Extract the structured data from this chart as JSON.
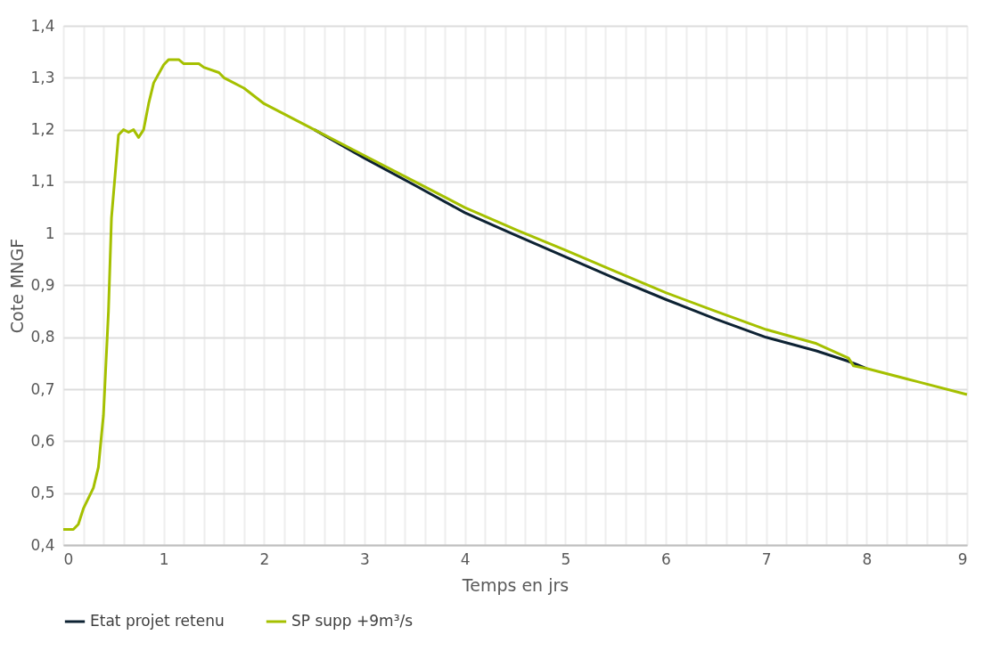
{
  "chart_data": {
    "type": "line",
    "xlabel": "Temps en jrs",
    "ylabel": "Cote MNGF",
    "xlim": [
      0,
      9
    ],
    "ylim": [
      0.4,
      1.4
    ],
    "xticks": [
      0,
      {
        "value": 0.2,
        "label": null
      },
      {
        "value": 0.4,
        "label": null
      },
      {
        "value": 0.6,
        "label": null
      },
      {
        "value": 0.8,
        "label": null
      },
      1,
      {
        "value": 1.2,
        "label": null
      },
      {
        "value": 1.4,
        "label": null
      },
      {
        "value": 1.6,
        "label": null
      },
      {
        "value": 1.8,
        "label": null
      },
      2,
      {
        "value": 2.2,
        "label": null
      },
      {
        "value": 2.4,
        "label": null
      },
      {
        "value": 2.6,
        "label": null
      },
      {
        "value": 2.8,
        "label": null
      },
      3,
      {
        "value": 3.2,
        "label": null
      },
      {
        "value": 3.4,
        "label": null
      },
      {
        "value": 3.6,
        "label": null
      },
      {
        "value": 3.8,
        "label": null
      },
      4,
      {
        "value": 4.2,
        "label": null
      },
      {
        "value": 4.4,
        "label": null
      },
      {
        "value": 4.6,
        "label": null
      },
      {
        "value": 4.8,
        "label": null
      },
      5,
      {
        "value": 5.2,
        "label": null
      },
      {
        "value": 5.4,
        "label": null
      },
      {
        "value": 5.6,
        "label": null
      },
      {
        "value": 5.8,
        "label": null
      },
      6,
      {
        "value": 6.2,
        "label": null
      },
      {
        "value": 6.4,
        "label": null
      },
      {
        "value": 6.6,
        "label": null
      },
      {
        "value": 6.8,
        "label": null
      },
      7,
      {
        "value": 7.2,
        "label": null
      },
      {
        "value": 7.4,
        "label": null
      },
      {
        "value": 7.6,
        "label": null
      },
      {
        "value": 7.8,
        "label": null
      },
      8,
      {
        "value": 8.2,
        "label": null
      },
      {
        "value": 8.4,
        "label": null
      },
      {
        "value": 8.6,
        "label": null
      },
      {
        "value": 8.8,
        "label": null
      },
      9
    ],
    "yticks": [
      {
        "value": 0.4,
        "label": "0,4"
      },
      {
        "value": 0.5,
        "label": "0,5"
      },
      {
        "value": 0.6,
        "label": "0,6"
      },
      {
        "value": 0.7,
        "label": "0,7"
      },
      {
        "value": 0.8,
        "label": "0,8"
      },
      {
        "value": 0.9,
        "label": "0,9"
      },
      1,
      {
        "value": 1.1,
        "label": "1,1"
      },
      {
        "value": 1.2,
        "label": "1,2"
      },
      {
        "value": 1.3,
        "label": "1,3"
      },
      {
        "value": 1.4,
        "label": "1,4"
      }
    ],
    "grid": true,
    "legend": "bottom",
    "marker": "none",
    "line_style": "solid",
    "series": [
      {
        "name": "Etat projet retenu",
        "color": "#0d2233",
        "x": [
          2.5,
          3.0,
          3.5,
          4.0,
          4.5,
          5.0,
          5.5,
          6.0,
          6.5,
          7.0,
          7.5,
          7.8,
          7.9,
          8.0
        ],
        "values": [
          1.2,
          1.145,
          1.093,
          1.04,
          0.997,
          0.955,
          0.913,
          0.873,
          0.835,
          0.8,
          0.774,
          0.755,
          0.748,
          0.74
        ]
      },
      {
        "name": "SP supp +9m³/s",
        "color": "#a5c000",
        "x": [
          0,
          0.1,
          0.15,
          0.2,
          0.3,
          0.35,
          0.4,
          0.45,
          0.48,
          0.55,
          0.6,
          0.65,
          0.7,
          0.75,
          0.8,
          0.85,
          0.9,
          1.0,
          1.05,
          1.15,
          1.2,
          1.35,
          1.4,
          1.55,
          1.6,
          1.8,
          2.0,
          2.5,
          3.0,
          3.5,
          4.0,
          4.5,
          5.0,
          5.5,
          6.0,
          6.5,
          7.0,
          7.5,
          7.82,
          7.87,
          8.0,
          8.5,
          9.0
        ],
        "values": [
          0.43,
          0.43,
          0.44,
          0.47,
          0.51,
          0.55,
          0.65,
          0.85,
          1.03,
          1.19,
          1.2,
          1.195,
          1.2,
          1.185,
          1.2,
          1.25,
          1.29,
          1.325,
          1.335,
          1.335,
          1.327,
          1.327,
          1.32,
          1.31,
          1.3,
          1.28,
          1.25,
          1.2,
          1.15,
          1.1,
          1.05,
          1.008,
          0.968,
          0.927,
          0.886,
          0.85,
          0.815,
          0.788,
          0.76,
          0.745,
          0.74,
          0.715,
          0.69
        ]
      }
    ]
  }
}
